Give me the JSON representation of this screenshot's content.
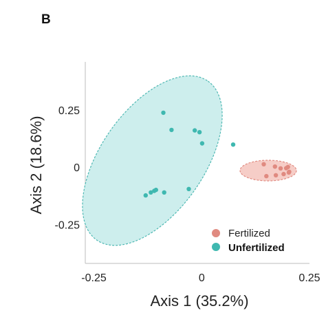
{
  "panel_label": "B",
  "chart_data": {
    "type": "scatter",
    "xlabel": "Axis 1 (35.2%)",
    "ylabel": "Axis 2 (18.6%)",
    "xlim": [
      -0.27,
      0.25
    ],
    "ylim": [
      -0.42,
      0.46
    ],
    "x_ticks": [
      -0.25,
      0,
      0.25
    ],
    "x_tick_labels": [
      "-0.25",
      "0",
      "0.25"
    ],
    "y_ticks": [
      0.25,
      0,
      -0.25
    ],
    "y_tick_labels": [
      "0.25",
      "0",
      "-0.25"
    ],
    "grid": false,
    "legend_position": "bottom-right",
    "series": [
      {
        "name": "Fertilized",
        "color": "#e08a80",
        "fill": "#f2c0b8",
        "points": [
          [
            0.144,
            0.013
          ],
          [
            0.17,
            0.003
          ],
          [
            0.183,
            -0.005
          ],
          [
            0.2,
            0.001
          ],
          [
            0.203,
            -0.02
          ],
          [
            0.19,
            -0.03
          ],
          [
            0.172,
            -0.035
          ],
          [
            0.15,
            -0.039
          ],
          [
            0.202,
            -0.023
          ],
          [
            0.196,
            -0.004
          ]
        ]
      },
      {
        "name": "Unfertilized",
        "color": "#3fb8b0",
        "fill": "#cdeeed",
        "points": [
          [
            -0.089,
            0.238
          ],
          [
            -0.07,
            0.163
          ],
          [
            -0.016,
            0.161
          ],
          [
            -0.005,
            0.153
          ],
          [
            0.001,
            0.104
          ],
          [
            0.073,
            0.099
          ],
          [
            -0.13,
            -0.123
          ],
          [
            -0.118,
            -0.11
          ],
          [
            -0.11,
            -0.103
          ],
          [
            -0.106,
            -0.099
          ],
          [
            -0.087,
            -0.11
          ],
          [
            -0.03,
            -0.095
          ]
        ]
      }
    ]
  }
}
